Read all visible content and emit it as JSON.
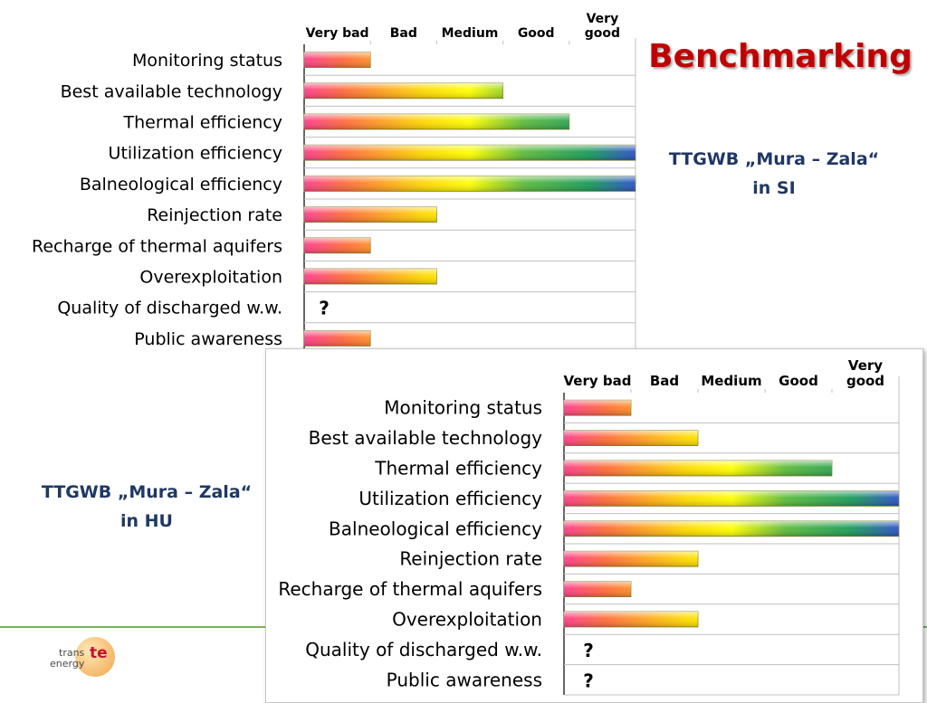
{
  "slide": {
    "title": "Benchmarking",
    "si_label": [
      "TTGWB „Mura – Zala“",
      "in SI"
    ],
    "hu_label": [
      "TTGWB „Mura – Zala“",
      "in HU"
    ]
  },
  "logo": {
    "line1": "trans",
    "line2": "energy",
    "mark": "te"
  },
  "colors": {
    "title": "#c00000",
    "ttgwb_label": "#1f3864",
    "accent_line": "#7cb15a",
    "gradient_stops": [
      "#ff3d8c",
      "#ff6a3a",
      "#ffd800",
      "#ffff00",
      "#5dbb3a",
      "#1a9a5a",
      "#2a50c8"
    ]
  },
  "chart_data": [
    {
      "type": "bar",
      "title": "",
      "xlabel": "",
      "ylabel": "",
      "scale_labels": [
        "Very bad",
        "Bad",
        "Medium",
        "Good",
        "Very good"
      ],
      "xlim": [
        0,
        5
      ],
      "categories": [
        "Monitoring status",
        "Best available technology",
        "Thermal efficiency",
        "Utilization efficiency",
        "Balneological efficiency",
        "Reinjection rate",
        "Recharge of thermal aquifers",
        "Overexploitation",
        "Quality of discharged w.w.",
        "Public awareness"
      ],
      "values": [
        1,
        3,
        4,
        5,
        5,
        2,
        1,
        2,
        null,
        1
      ],
      "unknown_marker": "?"
    },
    {
      "type": "bar",
      "title": "",
      "xlabel": "",
      "ylabel": "",
      "scale_labels": [
        "Very bad",
        "Bad",
        "Medium",
        "Good",
        "Very good"
      ],
      "xlim": [
        0,
        5
      ],
      "categories": [
        "Monitoring status",
        "Best available technology",
        "Thermal efficiency",
        "Utilization efficiency",
        "Balneological efficiency",
        "Reinjection rate",
        "Recharge of thermal aquifers",
        "Overexploitation",
        "Quality of discharged w.w.",
        "Public awareness"
      ],
      "values": [
        1,
        2,
        4,
        5,
        5,
        2,
        1,
        2,
        null,
        null
      ],
      "unknown_marker": "?"
    }
  ]
}
